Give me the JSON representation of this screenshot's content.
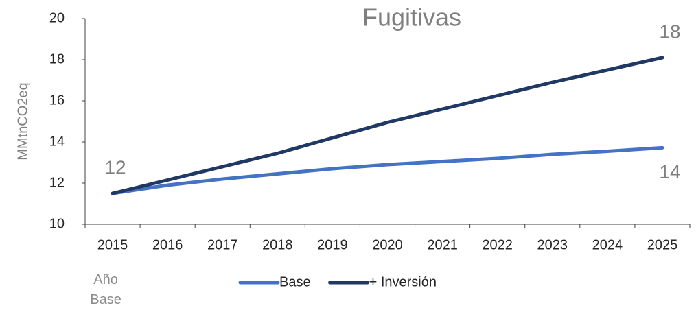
{
  "chart_data": {
    "type": "line",
    "title": "Fugitivas",
    "ylabel": "MMtnCO2eq",
    "annotation": "Año Base",
    "categories": [
      "2015",
      "2016",
      "2017",
      "2018",
      "2019",
      "2020",
      "2021",
      "2022",
      "2023",
      "2024",
      "2025"
    ],
    "series": [
      {
        "name": "Base",
        "color": "#4472c4",
        "values": [
          11.5,
          11.9,
          12.2,
          12.45,
          12.7,
          12.9,
          13.05,
          13.2,
          13.4,
          13.55,
          13.72
        ],
        "value_labels": [
          null,
          null,
          null,
          null,
          null,
          null,
          null,
          null,
          null,
          null,
          "14"
        ]
      },
      {
        "name": "+ Inversión",
        "color": "#1f3864",
        "values": [
          11.5,
          12.15,
          12.8,
          13.45,
          14.2,
          14.95,
          15.6,
          16.25,
          16.9,
          17.5,
          18.1
        ],
        "value_labels": [
          "12",
          null,
          null,
          null,
          null,
          null,
          null,
          null,
          null,
          null,
          "18"
        ]
      }
    ],
    "ylim": [
      10,
      20
    ],
    "yticks": [
      10,
      12,
      14,
      16,
      18,
      20
    ],
    "grid": false,
    "legend": "bottom"
  }
}
